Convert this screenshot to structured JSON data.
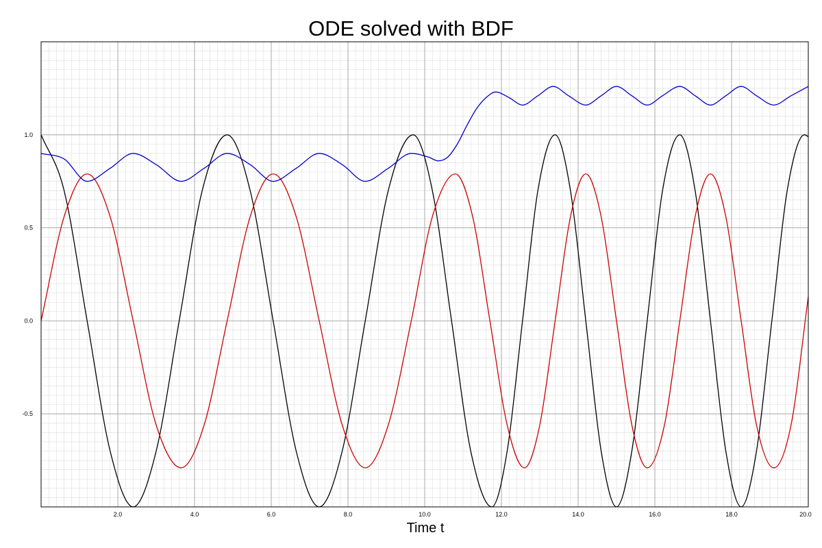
{
  "chart_data": {
    "type": "line",
    "title": "ODE solved with BDF",
    "xlabel": "Time t",
    "ylabel": "",
    "xlim": [
      0,
      20
    ],
    "ylim": [
      -1,
      1.5
    ],
    "x_ticks": [
      {
        "value": 2,
        "label": "2.0"
      },
      {
        "value": 4,
        "label": "4.0"
      },
      {
        "value": 6,
        "label": "6.0"
      },
      {
        "value": 8,
        "label": "8.0"
      },
      {
        "value": 10,
        "label": "10.0"
      },
      {
        "value": 12,
        "label": "12.0"
      },
      {
        "value": 14,
        "label": "14.0"
      },
      {
        "value": 16,
        "label": "16.0"
      },
      {
        "value": 18,
        "label": "18.0"
      },
      {
        "value": 20,
        "label": "20.0"
      }
    ],
    "y_ticks": [
      {
        "value": -0.5,
        "label": "-0.5"
      },
      {
        "value": 0,
        "label": "0.0"
      },
      {
        "value": 0.5,
        "label": "0.5"
      },
      {
        "value": 1,
        "label": "1.0"
      }
    ],
    "grid": true,
    "legend": false,
    "series": [
      {
        "color": "#000000",
        "x": [
          0.0,
          0.6,
          1.2,
          1.8,
          2.4,
          3.0,
          3.6,
          4.2,
          4.85,
          5.45,
          6.05,
          6.65,
          7.25,
          7.85,
          8.45,
          9.05,
          9.7,
          10.2,
          10.7,
          11.2,
          11.75,
          12.15,
          12.55,
          12.95,
          13.4,
          13.8,
          14.2,
          14.6,
          15.0,
          15.4,
          15.8,
          16.2,
          16.65,
          17.05,
          17.45,
          17.85,
          18.25,
          18.65,
          19.05,
          19.45,
          19.9,
          20.0
        ],
        "y": [
          1.0,
          0.7,
          0.0,
          -0.7,
          -1.0,
          -0.7,
          0.0,
          0.7,
          1.0,
          0.7,
          0.0,
          -0.7,
          -1.0,
          -0.7,
          0.0,
          0.7,
          1.0,
          0.7,
          0.0,
          -0.7,
          -1.0,
          -0.7,
          0.0,
          0.7,
          1.0,
          0.7,
          0.0,
          -0.7,
          -1.0,
          -0.7,
          0.0,
          0.7,
          1.0,
          0.7,
          0.0,
          -0.7,
          -1.0,
          -0.7,
          0.0,
          0.7,
          1.0,
          0.99
        ]
      },
      {
        "color": "#cc0000",
        "x": [
          0.0,
          0.6,
          1.2,
          1.8,
          2.4,
          3.0,
          3.65,
          4.25,
          4.85,
          5.45,
          6.05,
          6.65,
          7.25,
          7.85,
          8.45,
          9.05,
          9.65,
          10.2,
          10.8,
          11.25,
          11.7,
          12.15,
          12.6,
          13.0,
          13.4,
          13.8,
          14.2,
          14.6,
          15.0,
          15.4,
          15.8,
          16.25,
          16.65,
          17.05,
          17.45,
          17.85,
          18.25,
          18.65,
          19.1,
          19.55,
          20.0
        ],
        "y": [
          0.0,
          0.56,
          0.79,
          0.56,
          0.0,
          -0.56,
          -0.79,
          -0.56,
          0.0,
          0.56,
          0.79,
          0.56,
          0.0,
          -0.56,
          -0.79,
          -0.56,
          0.0,
          0.56,
          0.79,
          0.56,
          0.0,
          -0.56,
          -0.79,
          -0.56,
          0.0,
          0.56,
          0.79,
          0.56,
          0.0,
          -0.56,
          -0.79,
          -0.56,
          0.0,
          0.56,
          0.79,
          0.56,
          0.0,
          -0.56,
          -0.79,
          -0.56,
          0.13
        ]
      },
      {
        "color": "#0000cc",
        "x": [
          0.0,
          0.6,
          1.2,
          1.8,
          2.4,
          3.0,
          3.65,
          4.25,
          4.85,
          5.45,
          6.05,
          6.65,
          7.25,
          7.85,
          8.45,
          9.05,
          9.65,
          10.1,
          10.35,
          10.6,
          10.85,
          11.1,
          11.35,
          11.6,
          11.85,
          12.2,
          12.55,
          12.95,
          13.35,
          13.75,
          14.2,
          14.6,
          15.0,
          15.4,
          15.8,
          16.2,
          16.65,
          17.05,
          17.45,
          17.85,
          18.25,
          18.65,
          19.1,
          19.55,
          20.0
        ],
        "y": [
          0.9,
          0.87,
          0.75,
          0.82,
          0.9,
          0.84,
          0.75,
          0.82,
          0.9,
          0.84,
          0.75,
          0.82,
          0.9,
          0.84,
          0.75,
          0.82,
          0.9,
          0.88,
          0.86,
          0.88,
          0.95,
          1.05,
          1.14,
          1.2,
          1.23,
          1.2,
          1.16,
          1.21,
          1.26,
          1.21,
          1.16,
          1.21,
          1.26,
          1.21,
          1.16,
          1.21,
          1.26,
          1.21,
          1.16,
          1.21,
          1.26,
          1.21,
          1.16,
          1.21,
          1.26
        ]
      }
    ]
  }
}
